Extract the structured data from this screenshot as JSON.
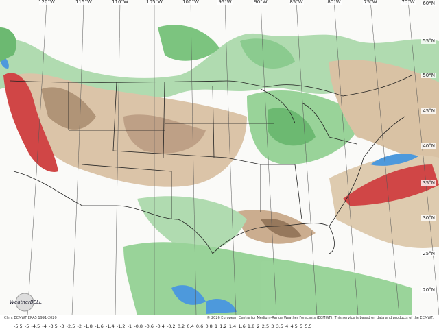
{
  "map": {
    "longitude_labels": [
      "120°W",
      "115°W",
      "110°W",
      "105°W",
      "100°W",
      "95°W",
      "90°W",
      "85°W",
      "80°W",
      "75°W",
      "70°W"
    ],
    "latitude_labels": [
      "60°N",
      "55°N",
      "50°N",
      "45°N",
      "40°N",
      "35°N",
      "30°N",
      "25°N",
      "20°N"
    ],
    "logo": "WeatherBELL",
    "climatology_note": "Clim: ECMWF ERA5 1991-2020",
    "copyright": "© 2026 European Centre for Medium-Range Weather Forecasts (ECMWF). This service is based on data and products of the ECMWF.",
    "colorbar_labels": [
      -5.5,
      -5,
      -4.5,
      -4,
      -3.5,
      -3,
      -2.5,
      -2,
      -1.8,
      -1.6,
      -1.4,
      -1.2,
      -1,
      -0.8,
      -0.6,
      -0.4,
      -0.2,
      0.2,
      0.4,
      0.6,
      0.8,
      1,
      1.2,
      1.4,
      1.6,
      1.8,
      2,
      2.5,
      3,
      3.5,
      4,
      4.5,
      5,
      5.5
    ]
  }
}
